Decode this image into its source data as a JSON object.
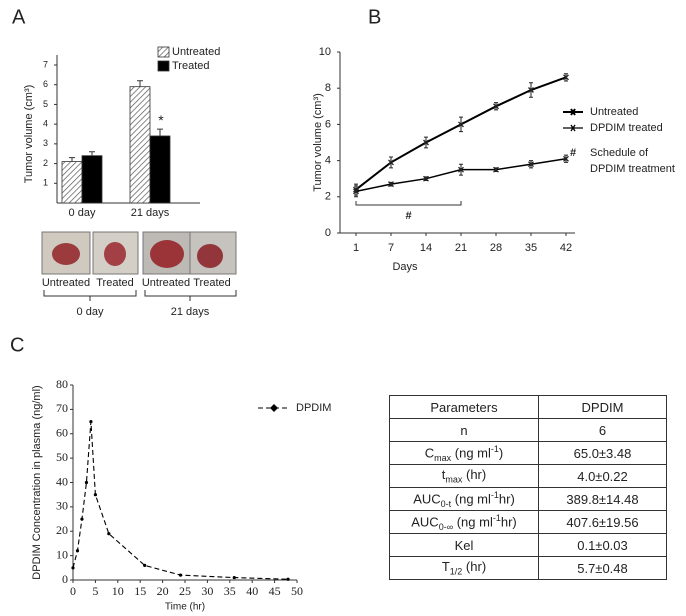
{
  "panels": [
    "A",
    "B",
    "C"
  ],
  "chart_data": [
    {
      "type": "bar",
      "ylabel": "Tumor volume (cm³)",
      "categories": [
        "0 day",
        "21 days"
      ],
      "series": [
        {
          "name": "Untreated",
          "color": "#ffffff",
          "hatch": true,
          "values": [
            2.1,
            5.9
          ],
          "errors": [
            0.2,
            0.3
          ]
        },
        {
          "name": "Treated",
          "color": "#000000",
          "hatch": false,
          "values": [
            2.4,
            3.4
          ],
          "errors": [
            0.2,
            0.35
          ]
        }
      ],
      "ylim": [
        0,
        7
      ],
      "yticks": [
        1,
        2,
        3,
        4,
        5,
        6,
        7
      ],
      "significance": "*"
    },
    {
      "type": "line",
      "ylabel": "Tumor volume (cm³)",
      "xlabel": "Days",
      "categories": [
        "1",
        "7",
        "14",
        "21",
        "28",
        "35",
        "42"
      ],
      "series": [
        {
          "name": "Untreated",
          "color": "#000000",
          "values": [
            2.4,
            3.9,
            5.0,
            6.0,
            7.0,
            7.9,
            8.6
          ],
          "errors": [
            0.3,
            0.3,
            0.3,
            0.4,
            0.2,
            0.4,
            0.2
          ]
        },
        {
          "name": "DPDIM treated",
          "color": "#000000",
          "values": [
            2.3,
            2.7,
            3.0,
            3.5,
            3.5,
            3.8,
            4.1
          ],
          "errors": [
            0.3,
            0.1,
            0.1,
            0.3,
            0.1,
            0.2,
            0.2
          ]
        }
      ],
      "ylim": [
        0,
        10
      ],
      "yticks": [
        0,
        2,
        4,
        6,
        8,
        10
      ],
      "annotation": {
        "symbol": "#",
        "lines": [
          "Schedule of",
          "DPDIM treatment"
        ]
      }
    },
    {
      "type": "scatter-line",
      "ylabel": "DPDIM Concentration in plasma (ng/ml)",
      "xlabel": "Time (hr)",
      "x": [
        0,
        1,
        2,
        3,
        4,
        5,
        8,
        16,
        24,
        36,
        48
      ],
      "series": [
        {
          "name": "DPDIM",
          "color": "#000000",
          "values": [
            5,
            12,
            25,
            40,
            65,
            35,
            19,
            6,
            2,
            1,
            0.3
          ]
        }
      ],
      "xlim": [
        0,
        50
      ],
      "xticks": [
        0,
        5,
        10,
        15,
        20,
        25,
        30,
        35,
        40,
        45,
        50
      ],
      "ylim": [
        0,
        80
      ],
      "yticks": [
        0,
        10,
        20,
        30,
        40,
        50,
        60,
        70,
        80
      ]
    }
  ],
  "photos": {
    "labels": [
      "Untreated",
      "Treated",
      "Untreated",
      "Treated"
    ],
    "groups": [
      "0 day",
      "21 days"
    ]
  },
  "table": {
    "header": [
      "Parameters",
      "DPDIM"
    ],
    "rows": [
      [
        [
          {
            "t": "n"
          }
        ],
        "6"
      ],
      [
        [
          {
            "t": "C"
          },
          {
            "sub": "max"
          },
          {
            "t": " (ng ml"
          },
          {
            "sup": "-1"
          },
          {
            "t": ")"
          }
        ],
        "65.0±3.48"
      ],
      [
        [
          {
            "t": "t"
          },
          {
            "sub": "max"
          },
          {
            "t": " (hr)"
          }
        ],
        "4.0±0.22"
      ],
      [
        [
          {
            "t": "AUC"
          },
          {
            "sub": "0-t"
          },
          {
            "t": " (ng ml"
          },
          {
            "sup": "-1"
          },
          {
            "t": "hr)"
          }
        ],
        "389.8±14.48"
      ],
      [
        [
          {
            "t": "AUC"
          },
          {
            "sub": "0-∞"
          },
          {
            "t": " (ng ml"
          },
          {
            "sup": "-1"
          },
          {
            "t": "hr)"
          }
        ],
        "407.6±19.56"
      ],
      [
        [
          {
            "t": "Kel"
          }
        ],
        "0.1±0.03"
      ],
      [
        [
          {
            "t": "T"
          },
          {
            "sub": "1/2"
          },
          {
            "t": " (hr)"
          }
        ],
        "5.7±0.48"
      ]
    ]
  }
}
